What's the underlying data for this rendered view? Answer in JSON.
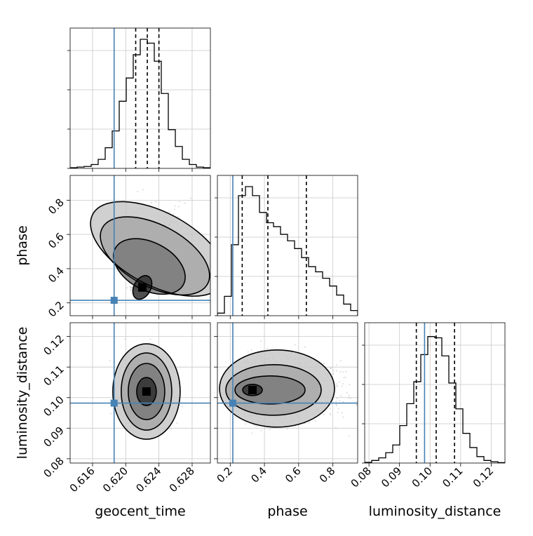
{
  "chart_data": {
    "type": "corner",
    "parameters": [
      "geocent_time",
      "phase",
      "luminosity_distance"
    ],
    "axis_labels": {
      "geocent_time": "geocent_time",
      "phase": "phase",
      "luminosity_distance": "luminosity_distance"
    },
    "ranges": {
      "geocent_time": [
        0.6133,
        0.6302
      ],
      "phase": [
        0.125,
        0.945
      ],
      "luminosity_distance": [
        0.0786,
        0.1245
      ]
    },
    "ticks": {
      "geocent_time": [
        "0.616",
        "0.620",
        "0.624",
        "0.628"
      ],
      "phase": [
        "0.2",
        "0.4",
        "0.6",
        "0.8"
      ],
      "luminosity_distance": [
        "0.08",
        "0.09",
        "0.10",
        "0.11",
        "0.12"
      ]
    },
    "truths": {
      "geocent_time": 0.6186,
      "phase": 0.215,
      "luminosity_distance": 0.0982
    },
    "quantiles": {
      "geocent_time": [
        0.6212,
        0.6226,
        0.624
      ],
      "phase": [
        0.27,
        0.42,
        0.645
      ],
      "luminosity_distance": [
        0.0955,
        0.102,
        0.108
      ]
    },
    "histograms": {
      "geocent_time": [
        0.005,
        0.01,
        0.015,
        0.03,
        0.07,
        0.16,
        0.29,
        0.52,
        0.7,
        0.88,
        1.0,
        0.97,
        0.83,
        0.58,
        0.3,
        0.17,
        0.07,
        0.03,
        0.01,
        0.005
      ],
      "phase": [
        0.02,
        0.15,
        0.55,
        0.93,
        1.0,
        0.93,
        0.8,
        0.72,
        0.69,
        0.63,
        0.58,
        0.52,
        0.45,
        0.38,
        0.34,
        0.29,
        0.23,
        0.16,
        0.09,
        0.04
      ],
      "luminosity_distance": [
        0.005,
        0.02,
        0.04,
        0.08,
        0.14,
        0.29,
        0.46,
        0.63,
        0.84,
        0.98,
        0.97,
        0.83,
        0.62,
        0.42,
        0.23,
        0.12,
        0.05,
        0.02,
        0.01,
        0.003
      ]
    },
    "joint": {
      "phase_vs_geocent_time": {
        "centroid": [
          0.622,
          0.29
        ],
        "contour_levels": [
          "0.5 sigma",
          "1 sigma",
          "1.5 sigma",
          "2 sigma"
        ]
      },
      "luminosity_distance_vs_geocent_time": {
        "centroid": [
          0.6225,
          0.102
        ],
        "contour_levels": [
          "0.5 sigma",
          "1 sigma",
          "1.5 sigma",
          "2 sigma"
        ]
      },
      "luminosity_distance_vs_phase": {
        "centroid": [
          0.33,
          0.1025
        ],
        "contour_levels": [
          "0.5 sigma",
          "1 sigma",
          "1.5 sigma",
          "2 sigma"
        ]
      }
    },
    "grid": true,
    "colors": {
      "truth": "#4682b4",
      "contour": "#000000",
      "histogram": "#000000",
      "scatter": "#9e9e9e",
      "grid": "#c8c8c8"
    }
  }
}
